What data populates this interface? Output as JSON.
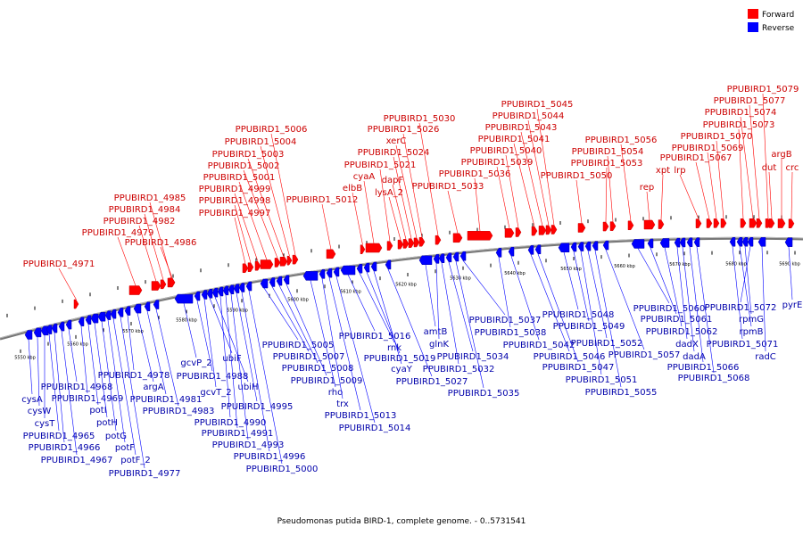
{
  "legend": {
    "forward_label": "Forward",
    "reverse_label": "Reverse",
    "forward_color": "#ff0000",
    "reverse_color": "#0000ff"
  },
  "caption": "Pseudomonas putida BIRD-1, complete genome. - 0..5731541",
  "genome_range": [
    0,
    5731541
  ],
  "axis_ticks": [
    "5550 kbp",
    "5560 kbp",
    "5570 kbp",
    "5580 kbp",
    "5590 kbp",
    "5600 kbp",
    "5610 kbp",
    "5620 kbp",
    "5630 kbp",
    "5640 kbp",
    "5650 kbp",
    "5660 kbp",
    "5670 kbp",
    "5680 kbp",
    "5690 kbp"
  ],
  "forward_genes": [
    "PPUBIRD1_4971",
    "PPUBIRD1_4979",
    "PPUBIRD1_4982",
    "PPUBIRD1_4984",
    "PPUBIRD1_4985",
    "PPUBIRD1_4986",
    "PPUBIRD1_4997",
    "PPUBIRD1_4998",
    "PPUBIRD1_4999",
    "PPUBIRD1_5001",
    "PPUBIRD1_5002",
    "PPUBIRD1_5003",
    "PPUBIRD1_5004",
    "PPUBIRD1_5006",
    "PPUBIRD1_5012",
    "elbB",
    "cyaA",
    "PPUBIRD1_5021",
    "lysA_2",
    "dapF",
    "PPUBIRD1_5024",
    "xerC",
    "PPUBIRD1_5026",
    "PPUBIRD1_5030",
    "PPUBIRD1_5033",
    "PPUBIRD1_5036",
    "PPUBIRD1_5039",
    "PPUBIRD1_5040",
    "PPUBIRD1_5041",
    "PPUBIRD1_5043",
    "PPUBIRD1_5044",
    "PPUBIRD1_5045",
    "PPUBIRD1_5050",
    "PPUBIRD1_5053",
    "PPUBIRD1_5054",
    "PPUBIRD1_5056",
    "rep",
    "xpt",
    "lrp",
    "PPUBIRD1_5067",
    "PPUBIRD1_5069",
    "PPUBIRD1_5070",
    "PPUBIRD1_5073",
    "PPUBIRD1_5074",
    "PPUBIRD1_5077",
    "PPUBIRD1_5079",
    "dut",
    "argB",
    "crc"
  ],
  "reverse_genes": [
    "cysA",
    "cysW",
    "cysT",
    "PPUBIRD1_4965",
    "PPUBIRD1_4966",
    "PPUBIRD1_4967",
    "PPUBIRD1_4968",
    "PPUBIRD1_4969",
    "potI",
    "potH",
    "potG",
    "potF",
    "potF_2",
    "PPUBIRD1_4977",
    "PPUBIRD1_4978",
    "argA",
    "PPUBIRD1_4981",
    "PPUBIRD1_4983",
    "gcvP_2",
    "PPUBIRD1_4988",
    "gcvT_2",
    "ubiF",
    "ubiH",
    "PPUBIRD1_4990",
    "PPUBIRD1_4991",
    "PPUBIRD1_4993",
    "PPUBIRD1_4995",
    "PPUBIRD1_4996",
    "PPUBIRD1_5000",
    "PPUBIRD1_5005",
    "PPUBIRD1_5007",
    "PPUBIRD1_5008",
    "PPUBIRD1_5009",
    "rho",
    "trx",
    "PPUBIRD1_5013",
    "PPUBIRD1_5014",
    "PPUBIRD1_5016",
    "rnk",
    "PPUBIRD1_5019",
    "cyaY",
    "PPUBIRD1_5027",
    "amtB",
    "glnK",
    "PPUBIRD1_5032",
    "PPUBIRD1_5034",
    "PPUBIRD1_5035",
    "PPUBIRD1_5037",
    "PPUBIRD1_5038",
    "PPUBIRD1_5042",
    "PPUBIRD1_5046",
    "PPUBIRD1_5047",
    "PPUBIRD1_5048",
    "PPUBIRD1_5049",
    "PPUBIRD1_5051",
    "PPUBIRD1_5052",
    "PPUBIRD1_5055",
    "PPUBIRD1_5057",
    "PPUBIRD1_5060",
    "PPUBIRD1_5061",
    "PPUBIRD1_5062",
    "dadX",
    "dadA",
    "PPUBIRD1_5066",
    "PPUBIRD1_5068",
    "PPUBIRD1_5071",
    "rpmB",
    "rpmG",
    "PPUBIRD1_5072",
    "radC",
    "pyrE"
  ]
}
